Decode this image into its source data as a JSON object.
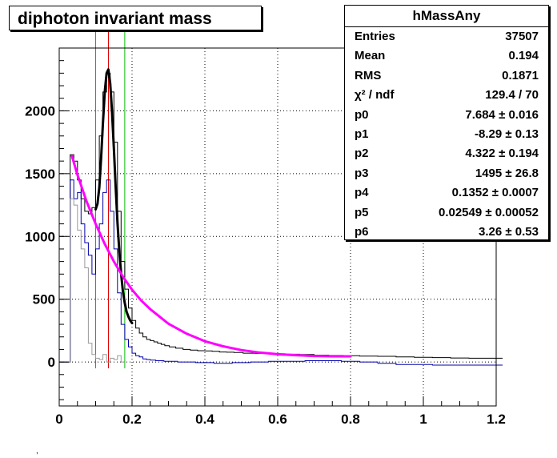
{
  "title": "diphoton invariant mass",
  "stats": {
    "name": "hMassAny",
    "rows": [
      {
        "label": "Entries",
        "value": "37507"
      },
      {
        "label": "Mean",
        "value": "0.194"
      },
      {
        "label": "RMS",
        "value": "0.1871"
      },
      {
        "label": "χ² / ndf",
        "value": "129.4 / 70"
      },
      {
        "label": "p0",
        "value": "7.684 ± 0.016"
      },
      {
        "label": "p1",
        "value": "-8.29 ± 0.13"
      },
      {
        "label": "p2",
        "value": "4.322 ± 0.194"
      },
      {
        "label": "p3",
        "value": "1495 ± 26.8"
      },
      {
        "label": "p4",
        "value": "0.1352 ± 0.0007"
      },
      {
        "label": "p5",
        "value": "0.02549 ± 0.00052"
      },
      {
        "label": "p6",
        "value": "3.26 ± 0.53"
      }
    ]
  },
  "footnote": ",",
  "chart_data": {
    "type": "line",
    "title": "diphoton invariant mass",
    "xlabel": "",
    "ylabel": "",
    "xlim": [
      0,
      1.2
    ],
    "ylim": [
      -350,
      2500
    ],
    "grid": true,
    "xticks": [
      0,
      0.2,
      0.4,
      0.6,
      0.8,
      1,
      1.2
    ],
    "xtick_labels": [
      "0",
      "0.2",
      "0.4",
      "0.6",
      "0.8",
      "1",
      "1.2"
    ],
    "yticks": [
      0,
      500,
      1000,
      1500,
      2000
    ],
    "ytick_labels": [
      "0",
      "500",
      "1000",
      "1500",
      "2000"
    ],
    "vertical_lines": [
      {
        "x": 0.1,
        "color": "#00bb00"
      },
      {
        "x": 0.1352,
        "color": "#e00000"
      },
      {
        "x": 0.18,
        "color": "#00bb00"
      }
    ],
    "series": [
      {
        "color": "#000000",
        "style": "histogram",
        "x": [
          0.005,
          0.015,
          0.025,
          0.035,
          0.045,
          0.055,
          0.065,
          0.075,
          0.085,
          0.095,
          0.105,
          0.115,
          0.125,
          0.135,
          0.145,
          0.155,
          0.165,
          0.175,
          0.185,
          0.195,
          0.205,
          0.215,
          0.225,
          0.235,
          0.245,
          0.255,
          0.265,
          0.275,
          0.285,
          0.295,
          0.31,
          0.33,
          0.35,
          0.37,
          0.39,
          0.41,
          0.43,
          0.45,
          0.47,
          0.49,
          0.52,
          0.56,
          0.6,
          0.64,
          0.68,
          0.72,
          0.76,
          0.8,
          0.85,
          0.9,
          0.95,
          1.0,
          1.05,
          1.1,
          1.15,
          1.195
        ],
        "y": [
          0,
          0,
          0,
          1650,
          1600,
          1450,
          1300,
          1200,
          1180,
          1230,
          1450,
          1800,
          2150,
          2300,
          2150,
          1750,
          1200,
          800,
          580,
          430,
          330,
          270,
          230,
          200,
          180,
          170,
          160,
          150,
          140,
          130,
          120,
          110,
          100,
          95,
          90,
          88,
          85,
          80,
          78,
          75,
          70,
          68,
          65,
          62,
          60,
          55,
          52,
          50,
          47,
          45,
          40,
          37,
          35,
          32,
          30,
          30
        ]
      },
      {
        "color": "#0000aa",
        "style": "histogram",
        "x": [
          0.005,
          0.015,
          0.025,
          0.035,
          0.045,
          0.055,
          0.065,
          0.075,
          0.085,
          0.095,
          0.105,
          0.115,
          0.125,
          0.135,
          0.145,
          0.155,
          0.165,
          0.175,
          0.185,
          0.195,
          0.205,
          0.215,
          0.225,
          0.235,
          0.245,
          0.255,
          0.275,
          0.3,
          0.35,
          0.4,
          0.45,
          0.5,
          0.55,
          0.6,
          0.65,
          0.7,
          0.75,
          0.8,
          0.85,
          0.9,
          0.95,
          1.0,
          1.05,
          1.1,
          1.15,
          1.195
        ],
        "y": [
          0,
          0,
          0,
          1450,
          1300,
          1350,
          1100,
          950,
          850,
          700,
          900,
          1100,
          1350,
          1450,
          1200,
          900,
          550,
          300,
          180,
          120,
          70,
          50,
          40,
          25,
          20,
          15,
          10,
          5,
          0,
          -5,
          -10,
          -5,
          0,
          5,
          5,
          10,
          10,
          5,
          0,
          -10,
          -20,
          -20,
          -25,
          -25,
          -25,
          -25
        ]
      },
      {
        "color": "#999999",
        "style": "histogram",
        "x": [
          0.005,
          0.015,
          0.025,
          0.035,
          0.045,
          0.055,
          0.065,
          0.075,
          0.085,
          0.095,
          0.105,
          0.115,
          0.125,
          0.135,
          0.145,
          0.155,
          0.165,
          0.175
        ],
        "y": [
          0,
          0,
          0,
          1300,
          1250,
          1050,
          900,
          750,
          150,
          60,
          30,
          20,
          60,
          0,
          30,
          20,
          50,
          0
        ]
      },
      {
        "color": "#000000",
        "style": "fit",
        "x": [
          0.1,
          0.105,
          0.11,
          0.115,
          0.12,
          0.125,
          0.13,
          0.135,
          0.14,
          0.145,
          0.15,
          0.155,
          0.16,
          0.165,
          0.17,
          0.175,
          0.18,
          0.185,
          0.19,
          0.195,
          0.2
        ],
        "y": [
          1215,
          1260,
          1390,
          1620,
          1900,
          2150,
          2300,
          2330,
          2220,
          1990,
          1700,
          1400,
          1110,
          880,
          700,
          560,
          470,
          400,
          360,
          330,
          310
        ]
      },
      {
        "color": "#ff00ff",
        "style": "fit",
        "x": [
          0.035,
          0.05,
          0.075,
          0.1,
          0.125,
          0.15,
          0.175,
          0.2,
          0.225,
          0.25,
          0.3,
          0.35,
          0.4,
          0.45,
          0.5,
          0.55,
          0.6,
          0.65,
          0.7,
          0.75,
          0.8
        ],
        "y": [
          1640,
          1490,
          1280,
          1100,
          940,
          800,
          680,
          575,
          490,
          420,
          305,
          225,
          165,
          125,
          95,
          75,
          62,
          54,
          48,
          45,
          45
        ]
      }
    ]
  }
}
